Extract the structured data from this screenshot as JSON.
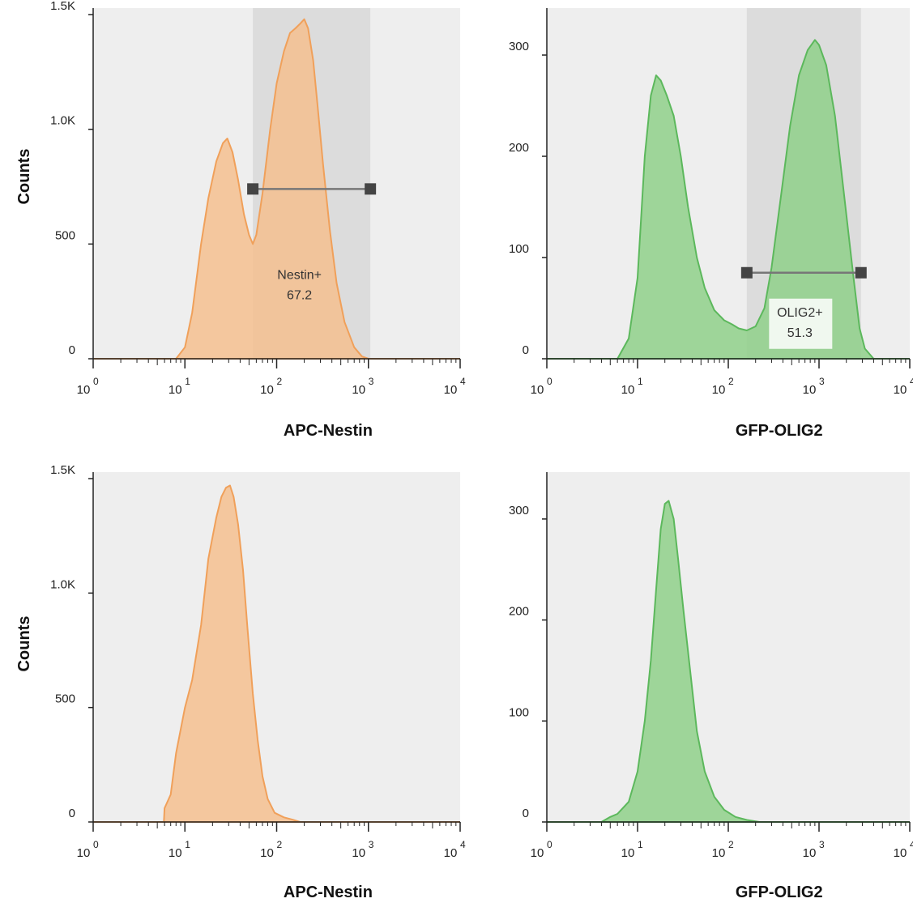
{
  "figure": {
    "y_axis_title": "Counts"
  },
  "chart_data": [
    {
      "type": "area",
      "panel": "top-left",
      "xlabel": "APC-Nestin",
      "ylabel": "Counts",
      "x_scale": "log",
      "xlim": [
        1,
        10000
      ],
      "ylim": [
        0,
        1500
      ],
      "x_ticks": [
        {
          "base": "10",
          "exp": "0"
        },
        {
          "base": "10",
          "exp": "1"
        },
        {
          "base": "10",
          "exp": "2"
        },
        {
          "base": "10",
          "exp": "3"
        },
        {
          "base": "10",
          "exp": "4"
        }
      ],
      "y_ticks": [
        {
          "value": 0,
          "label": "0"
        },
        {
          "value": 500,
          "label": "500"
        },
        {
          "value": 1000,
          "label": "1.0K"
        },
        {
          "value": 1500,
          "label": "1.5K"
        }
      ],
      "color": "#f0a05a",
      "fill": "#f5c08f",
      "series": [
        {
          "x": [
            8,
            10,
            12,
            15,
            18,
            22,
            26,
            29,
            33,
            38,
            44,
            50,
            55,
            60,
            70,
            85,
            100,
            120,
            140,
            160,
            180,
            200,
            220,
            250,
            280,
            320,
            380,
            450,
            550,
            700,
            850,
            1000,
            1200
          ],
          "values": [
            0,
            50,
            200,
            500,
            700,
            860,
            940,
            960,
            900,
            780,
            630,
            540,
            500,
            540,
            720,
            1000,
            1200,
            1340,
            1420,
            1440,
            1460,
            1480,
            1440,
            1300,
            1100,
            850,
            560,
            330,
            160,
            50,
            10,
            0,
            0
          ]
        }
      ],
      "gate": {
        "label": "Nestin+",
        "value": "67.2",
        "x_min": 55,
        "x_max": 1050,
        "y": 740
      }
    },
    {
      "type": "area",
      "panel": "top-right",
      "xlabel": "GFP-OLIG2",
      "ylabel": "",
      "x_scale": "log",
      "xlim": [
        1,
        10000
      ],
      "ylim": [
        0,
        340
      ],
      "x_ticks": [
        {
          "base": "10",
          "exp": "0"
        },
        {
          "base": "10",
          "exp": "1"
        },
        {
          "base": "10",
          "exp": "2"
        },
        {
          "base": "10",
          "exp": "3"
        },
        {
          "base": "10",
          "exp": "4"
        }
      ],
      "y_ticks": [
        {
          "value": 0,
          "label": "0"
        },
        {
          "value": 100,
          "label": "100"
        },
        {
          "value": 200,
          "label": "200"
        },
        {
          "value": 300,
          "label": "300"
        }
      ],
      "color": "#5cb85c",
      "fill": "#8fd08a",
      "series": [
        {
          "x": [
            6,
            8,
            10,
            12,
            14,
            16,
            18,
            21,
            25,
            30,
            36,
            45,
            55,
            70,
            90,
            110,
            130,
            160,
            200,
            250,
            300,
            380,
            480,
            600,
            750,
            900,
            1000,
            1200,
            1500,
            1900,
            2400,
            2800,
            3200,
            4000
          ],
          "values": [
            0,
            20,
            80,
            200,
            260,
            280,
            275,
            260,
            240,
            200,
            150,
            100,
            70,
            48,
            38,
            34,
            30,
            28,
            32,
            50,
            90,
            160,
            230,
            280,
            305,
            315,
            310,
            290,
            240,
            160,
            80,
            30,
            10,
            0
          ]
        }
      ],
      "gate": {
        "label": "OLIG2+",
        "value": "51.3",
        "x_min": 160,
        "x_max": 2900,
        "y": 85
      }
    },
    {
      "type": "area",
      "panel": "bottom-left",
      "xlabel": "APC-Nestin",
      "ylabel": "Counts",
      "x_scale": "log",
      "xlim": [
        1,
        10000
      ],
      "ylim": [
        0,
        1500
      ],
      "x_ticks": [
        {
          "base": "10",
          "exp": "0"
        },
        {
          "base": "10",
          "exp": "1"
        },
        {
          "base": "10",
          "exp": "2"
        },
        {
          "base": "10",
          "exp": "3"
        },
        {
          "base": "10",
          "exp": "4"
        }
      ],
      "y_ticks": [
        {
          "value": 0,
          "label": "0"
        },
        {
          "value": 500,
          "label": "500"
        },
        {
          "value": 1000,
          "label": "1.0K"
        },
        {
          "value": 1500,
          "label": "1.5K"
        }
      ],
      "color": "#f0a05a",
      "fill": "#f5c08f",
      "series": [
        {
          "x": [
            5.9,
            6,
            7,
            8,
            10,
            12,
            15,
            18,
            22,
            25,
            28,
            31,
            34,
            38,
            43,
            48,
            55,
            62,
            70,
            80,
            95,
            120,
            150,
            180
          ],
          "values": [
            0,
            60,
            120,
            300,
            500,
            620,
            860,
            1150,
            1330,
            1420,
            1460,
            1470,
            1420,
            1300,
            1100,
            850,
            560,
            360,
            200,
            100,
            40,
            20,
            10,
            0
          ]
        }
      ]
    },
    {
      "type": "area",
      "panel": "bottom-right",
      "xlabel": "GFP-OLIG2",
      "ylabel": "",
      "x_scale": "log",
      "xlim": [
        1,
        10000
      ],
      "ylim": [
        0,
        340
      ],
      "x_ticks": [
        {
          "base": "10",
          "exp": "0"
        },
        {
          "base": "10",
          "exp": "1"
        },
        {
          "base": "10",
          "exp": "2"
        },
        {
          "base": "10",
          "exp": "3"
        },
        {
          "base": "10",
          "exp": "4"
        }
      ],
      "y_ticks": [
        {
          "value": 0,
          "label": "0"
        },
        {
          "value": 100,
          "label": "100"
        },
        {
          "value": 200,
          "label": "200"
        },
        {
          "value": 300,
          "label": "300"
        }
      ],
      "color": "#5cb85c",
      "fill": "#8fd08a",
      "series": [
        {
          "x": [
            4,
            5,
            6,
            8,
            10,
            12,
            14,
            16,
            18,
            20,
            22,
            25,
            28,
            32,
            38,
            45,
            55,
            70,
            90,
            120,
            160,
            220
          ],
          "values": [
            0,
            5,
            8,
            20,
            50,
            100,
            160,
            230,
            290,
            315,
            318,
            300,
            260,
            210,
            150,
            90,
            50,
            25,
            12,
            5,
            2,
            0
          ]
        }
      ]
    }
  ]
}
